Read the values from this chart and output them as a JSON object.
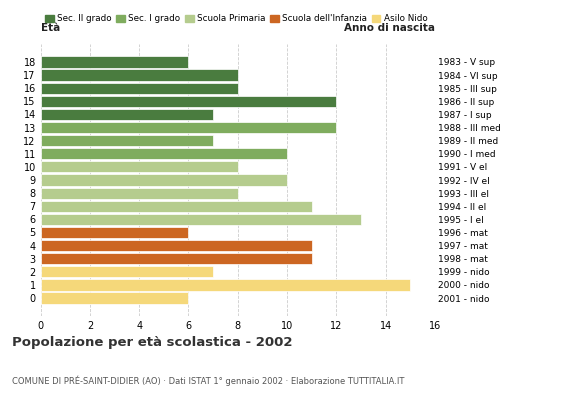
{
  "ages": [
    18,
    17,
    16,
    15,
    14,
    13,
    12,
    11,
    10,
    9,
    8,
    7,
    6,
    5,
    4,
    3,
    2,
    1,
    0
  ],
  "values": [
    6,
    8,
    8,
    12,
    7,
    12,
    7,
    10,
    8,
    10,
    8,
    11,
    13,
    6,
    11,
    11,
    7,
    15,
    6
  ],
  "right_labels": [
    "1983 - V sup",
    "1984 - VI sup",
    "1985 - III sup",
    "1986 - II sup",
    "1987 - I sup",
    "1988 - III med",
    "1989 - II med",
    "1990 - I med",
    "1991 - V el",
    "1992 - IV el",
    "1993 - III el",
    "1994 - II el",
    "1995 - I el",
    "1996 - mat",
    "1997 - mat",
    "1998 - mat",
    "1999 - nido",
    "2000 - nido",
    "2001 - nido"
  ],
  "colors": [
    "#4a7c3f",
    "#4a7c3f",
    "#4a7c3f",
    "#4a7c3f",
    "#4a7c3f",
    "#7fac5e",
    "#7fac5e",
    "#7fac5e",
    "#b5cc8e",
    "#b5cc8e",
    "#b5cc8e",
    "#b5cc8e",
    "#b5cc8e",
    "#cc6622",
    "#cc6622",
    "#cc6622",
    "#f5d87a",
    "#f5d87a",
    "#f5d87a"
  ],
  "legend_labels": [
    "Sec. II grado",
    "Sec. I grado",
    "Scuola Primaria",
    "Scuola dell'Infanzia",
    "Asilo Nido"
  ],
  "legend_colors": [
    "#4a7c3f",
    "#7fac5e",
    "#b5cc8e",
    "#cc6622",
    "#f5d87a"
  ],
  "xlabel_left": "Età",
  "xlabel_right": "Anno di nascita",
  "xlim": [
    0,
    16
  ],
  "xticks": [
    0,
    2,
    4,
    6,
    8,
    10,
    12,
    14,
    16
  ],
  "title": "Popolazione per età scolastica - 2002",
  "subtitle": "COMUNE DI PRÉ-SAINT-DIDIER (AO) · Dati ISTAT 1° gennaio 2002 · Elaborazione TUTTITALIA.IT",
  "bg_color": "#ffffff",
  "bar_edge_color": "#ffffff",
  "grid_color": "#cccccc",
  "title_color": "#333333",
  "subtitle_color": "#555555"
}
